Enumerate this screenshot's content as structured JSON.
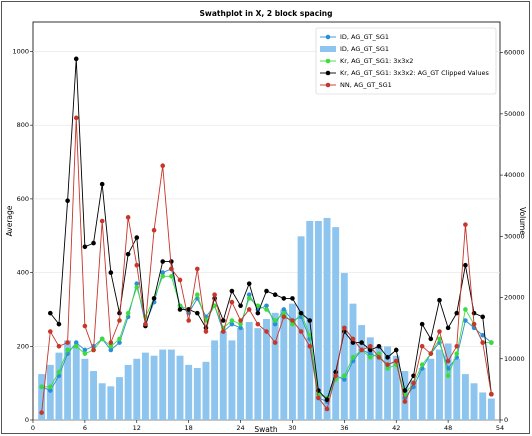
{
  "chart_data": {
    "type": "line",
    "title": "Swathplot in X, 2 block spacing",
    "x_label": "Swath",
    "y_label": "Average",
    "y2_label": "Volume",
    "xlim": [
      0,
      54
    ],
    "xticks": [
      0,
      6,
      12,
      18,
      24,
      30,
      36,
      42,
      48,
      54
    ],
    "ylim": [
      0,
      1080
    ],
    "yticks": [
      0,
      200,
      400,
      600,
      800,
      1000
    ],
    "y2lim": [
      0,
      65000
    ],
    "y2ticks": [
      0,
      10000,
      20000,
      30000,
      40000,
      50000,
      60000
    ],
    "grid": true,
    "legend": "upper right",
    "x": [
      1,
      2,
      3,
      4,
      5,
      6,
      7,
      8,
      9,
      10,
      11,
      12,
      13,
      14,
      15,
      16,
      17,
      18,
      19,
      20,
      21,
      22,
      23,
      24,
      25,
      26,
      27,
      28,
      29,
      30,
      31,
      32,
      33,
      34,
      35,
      36,
      37,
      38,
      39,
      40,
      41,
      42,
      43,
      44,
      45,
      46,
      47,
      48,
      49,
      50,
      51,
      52,
      53
    ],
    "series": [
      {
        "name": "ID, AG_GT_SG1",
        "type": "line",
        "color": "#2b8fd8",
        "values": [
          90,
          80,
          120,
          180,
          210,
          190,
          200,
          220,
          190,
          210,
          280,
          370,
          260,
          320,
          400,
          410,
          310,
          290,
          330,
          280,
          310,
          240,
          260,
          250,
          340,
          300,
          310,
          260,
          300,
          270,
          280,
          220,
          60,
          50,
          120,
          110,
          160,
          190,
          180,
          170,
          150,
          160,
          60,
          90,
          140,
          180,
          210,
          140,
          170,
          270,
          250,
          230,
          210
        ]
      },
      {
        "name": "ID, AG_GT_SG1",
        "type": "bar",
        "axis": "y2",
        "color": "#8ec5ef",
        "values": [
          7500,
          9000,
          11000,
          13000,
          12000,
          10000,
          8000,
          6000,
          5500,
          7000,
          9000,
          10000,
          11000,
          10500,
          11500,
          11500,
          10500,
          9000,
          8500,
          9500,
          13000,
          14500,
          13000,
          15000,
          16000,
          15000,
          16500,
          17500,
          18000,
          19000,
          30000,
          32500,
          32500,
          33000,
          31500,
          24000,
          19000,
          15500,
          13500,
          12000,
          12000,
          10500,
          8000,
          6500,
          8500,
          10000,
          11500,
          12500,
          10000,
          7500,
          6000,
          4500,
          3500
        ]
      },
      {
        "name": "Kr, AG_GT_SG1: 3x3x2",
        "type": "line",
        "color": "#3ddc3d",
        "values": [
          90,
          90,
          130,
          190,
          200,
          180,
          190,
          220,
          200,
          220,
          290,
          360,
          280,
          330,
          390,
          390,
          310,
          300,
          340,
          270,
          310,
          250,
          270,
          260,
          330,
          310,
          300,
          270,
          290,
          260,
          290,
          230,
          70,
          60,
          110,
          120,
          170,
          190,
          170,
          180,
          140,
          150,
          70,
          100,
          150,
          180,
          220,
          120,
          180,
          300,
          260,
          210,
          210
        ]
      },
      {
        "name": "Kr, AG_GT_SG1: 3x3x2: AG_GT Clipped Values",
        "type": "line",
        "color": "#000000",
        "values": [
          null,
          290,
          260,
          595,
          980,
          470,
          480,
          640,
          400,
          290,
          450,
          495,
          255,
          330,
          430,
          430,
          300,
          300,
          290,
          250,
          330,
          270,
          350,
          310,
          370,
          290,
          350,
          340,
          330,
          330,
          290,
          270,
          80,
          55,
          130,
          240,
          210,
          210,
          190,
          200,
          170,
          190,
          80,
          120,
          260,
          220,
          325,
          250,
          290,
          420,
          290,
          280,
          70
        ]
      },
      {
        "name": "NN, AG_GT_SG1",
        "type": "line",
        "color": "#c8352b",
        "values": [
          20,
          240,
          200,
          210,
          820,
          255,
          190,
          540,
          210,
          270,
          550,
          420,
          260,
          515,
          690,
          410,
          380,
          270,
          410,
          240,
          340,
          240,
          320,
          270,
          300,
          260,
          240,
          210,
          280,
          270,
          240,
          200,
          60,
          30,
          120,
          250,
          220,
          190,
          200,
          170,
          150,
          160,
          50,
          100,
          200,
          180,
          240,
          160,
          200,
          530,
          260,
          210,
          70
        ]
      }
    ]
  }
}
